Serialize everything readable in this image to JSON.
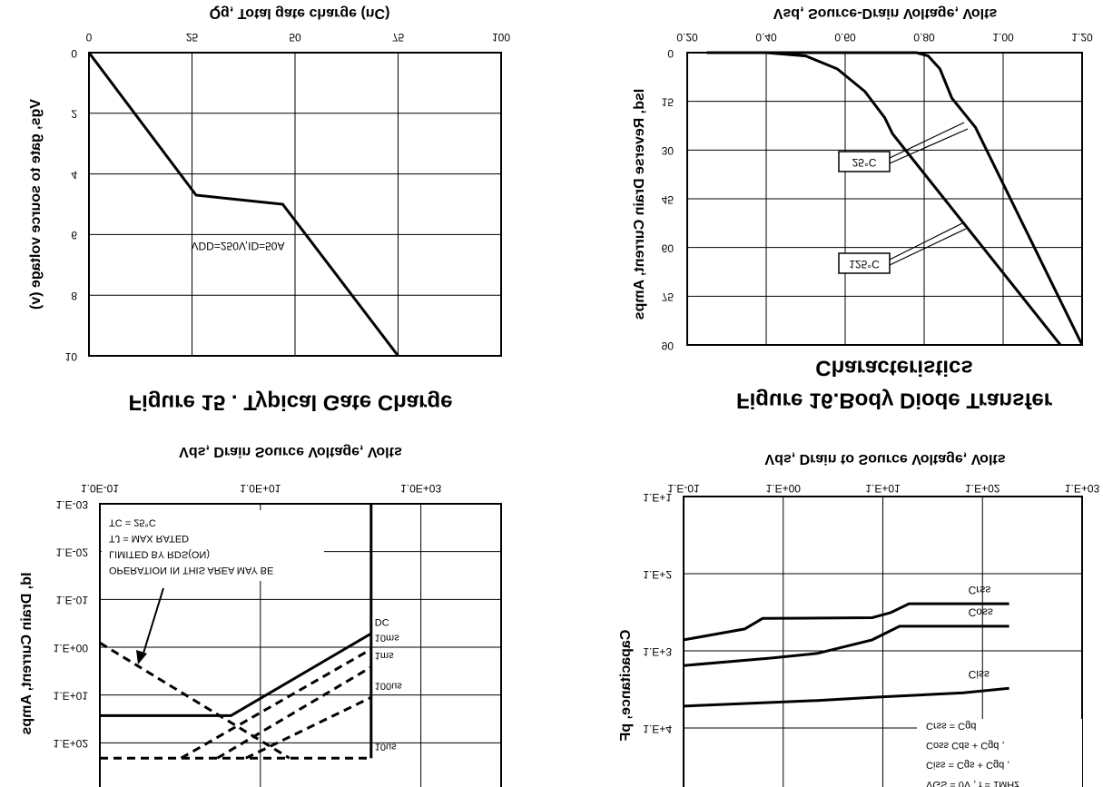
{
  "chart_data": [
    {
      "type": "line",
      "title": "Figure 15 . Typical Gate Charge",
      "xlabel": "Qg, Total gate charge (nC)",
      "ylabel": "Vgs, gate to source voltage (v)",
      "annotation": "VDD=250V,ID=50A",
      "x": [
        0,
        26,
        47,
        75
      ],
      "values": [
        0,
        4.7,
        5,
        10
      ],
      "color": "#000000",
      "xlim": [
        0,
        100
      ],
      "xticks": [
        0,
        25,
        50,
        75,
        100
      ],
      "ylim": [
        0,
        10
      ],
      "yticks": [
        0,
        2,
        4,
        6,
        8,
        10
      ],
      "grid": true
    },
    {
      "type": "line",
      "title": [
        "Figure 16.Body Diode Transfer",
        "Characteristics"
      ],
      "xlabel": "Vsd, Source-Drain Voltage, Volts",
      "ylabel": "Isd, Reverse Drain Current, Amps",
      "series": [
        {
          "name": "125°C",
          "color": "#000000",
          "x": [
            0.25,
            0.4,
            0.5,
            0.58,
            0.65,
            0.7,
            0.72,
            1.145
          ],
          "values": [
            0,
            0,
            1,
            5,
            12,
            20,
            25,
            90
          ]
        },
        {
          "name": "25°C",
          "color": "#000000",
          "x": [
            0.25,
            0.78,
            0.81,
            0.84,
            0.87,
            0.93,
            1.2
          ],
          "values": [
            0,
            0,
            1,
            5,
            14,
            23,
            90
          ]
        }
      ],
      "xlim": [
        0.2,
        1.2
      ],
      "xticks": [
        {
          "value": 0.2,
          "label": "0.20"
        },
        {
          "value": 0.4,
          "label": "0.40"
        },
        {
          "value": 0.6,
          "label": "0.60"
        },
        {
          "value": 0.8,
          "label": "0.80"
        },
        {
          "value": 1.0,
          "label": "1.00"
        },
        {
          "value": 1.2,
          "label": "1.20"
        }
      ],
      "ylim": [
        0,
        90
      ],
      "yticks": [
        0,
        15,
        30,
        45,
        60,
        75,
        90
      ],
      "grid": true
    },
    {
      "type": "line",
      "xlabel": "Vds, Drain Source Voltage, Volts",
      "ylabel": "Id, Drain Current, Amps",
      "xscale": "log",
      "yscale": "log",
      "annotation": [
        "OPERATION IN THIS AREA MAY BE",
        "LIMITED BY RDS(ON)",
        "TJ = MAX RATED",
        "TC = 25°C"
      ],
      "series": [
        {
          "name": "DC",
          "color": "#000000",
          "dash": false,
          "x": [
            0.1,
            4.3,
            240
          ],
          "values": [
            27,
            27,
            0.52
          ]
        },
        {
          "name": "10ms",
          "color": "#000000",
          "dash": true,
          "x": [
            1.03,
            240
          ],
          "values": [
            209,
            1.1
          ]
        },
        {
          "name": "1ms",
          "color": "#000000",
          "dash": true,
          "x": [
            2.9,
            240
          ],
          "values": [
            209,
            2.6
          ]
        },
        {
          "name": "100us",
          "color": "#000000",
          "dash": true,
          "x": [
            6.6,
            240
          ],
          "values": [
            209,
            11.2
          ]
        },
        {
          "name": "10us",
          "color": "#000000",
          "dash": true,
          "x": [
            0.1,
            240
          ],
          "values": [
            209,
            209
          ]
        },
        {
          "color": "#000000",
          "dash": true,
          "x": [
            0.1,
            23
          ],
          "values": [
            0.81,
            209
          ]
        },
        {
          "color": "#000000",
          "dash": false,
          "x": [
            240,
            240
          ],
          "values": [
            0.001,
            209
          ]
        }
      ],
      "xlim": [
        0.1,
        10000
      ],
      "xticks": [
        {
          "value": 0.1,
          "label": "1.0E-01"
        },
        {
          "value": 10,
          "label": "1.0E+01"
        },
        {
          "value": 1000,
          "label": "1.0E+03"
        }
      ],
      "ylim": [
        0.001,
        1000
      ],
      "yticks": [
        {
          "value": 0.001,
          "label": "1.E-03"
        },
        {
          "value": 0.01,
          "label": "1.E-02"
        },
        {
          "value": 0.1,
          "label": "1.E-01"
        },
        {
          "value": 1,
          "label": "1.E+00"
        },
        {
          "value": 10,
          "label": "1.E+01"
        },
        {
          "value": 100,
          "label": "1.E+02"
        }
      ],
      "grid": true
    },
    {
      "type": "line",
      "xlabel": "Vds, Drain to Source Voltage, Volts",
      "ylabel": "Capacitance, pF",
      "xscale": "log",
      "yscale": "log",
      "annotation": [
        "VGS = 0V , f = 1MHz",
        "Ciss = Cgs + Cgd ,",
        "Coss Cds + Cgd ,",
        "Crss = Cgd"
      ],
      "series": [
        {
          "name": "Crss",
          "color": "#000000",
          "x": [
            0.1,
            0.41,
            0.62,
            7.8,
            12,
            18.3,
            185
          ],
          "values": [
            720,
            520,
            380,
            372,
            320,
            245,
            245
          ]
        },
        {
          "name": "Coss",
          "color": "#000000",
          "x": [
            0.1,
            0.77,
            2.2,
            7.8,
            14.7,
            18.3,
            185
          ],
          "values": [
            1550,
            1240,
            1080,
            720,
            480,
            480,
            480
          ]
        },
        {
          "name": "Ciss",
          "color": "#000000",
          "x": [
            0.1,
            2.2,
            7.8,
            18.3,
            64,
            185
          ],
          "values": [
            5200,
            4400,
            4000,
            3800,
            3500,
            3050
          ]
        }
      ],
      "xlim": [
        0.1,
        1000
      ],
      "xticks": [
        {
          "value": 0.1,
          "label": "1.E-01"
        },
        {
          "value": 1,
          "label": "1.E+00"
        },
        {
          "value": 10,
          "label": "1.E+01"
        },
        {
          "value": 100,
          "label": "1.E+02"
        },
        {
          "value": 1000,
          "label": "1.E+03"
        }
      ],
      "ylim": [
        10,
        100000
      ],
      "yticks": [
        {
          "value": 10,
          "label": "1.E+1"
        },
        {
          "value": 100,
          "label": "1.E+2"
        },
        {
          "value": 1000,
          "label": "1.E+3"
        },
        {
          "value": 10000,
          "label": "1.E+4"
        }
      ],
      "grid": true
    }
  ]
}
